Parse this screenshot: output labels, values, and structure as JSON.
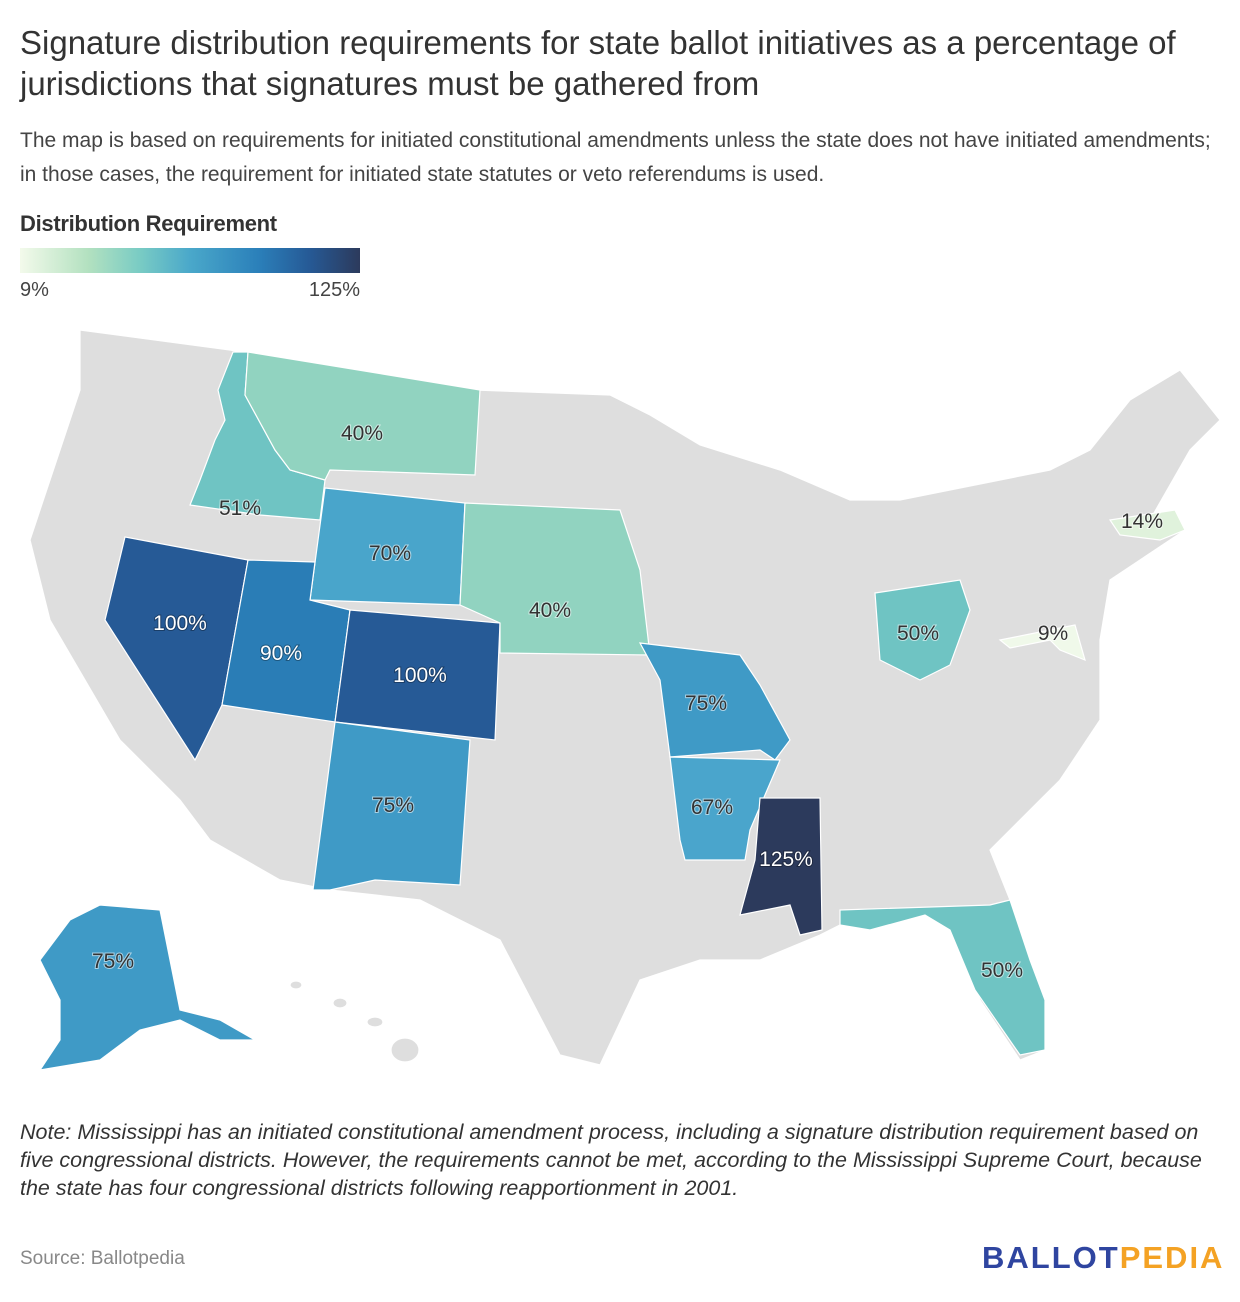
{
  "title": "Signature distribution requirements for state ballot initiatives as a percentage of jurisdictions that signatures must be gathered from",
  "subtitle": "The map is based on requirements for initiated constitutional amendments unless the state does not have initiated amendments; in those cases, the requirement for initiated state statutes or veto referendums is used.",
  "legend": {
    "title": "Distribution Requirement",
    "min_label": "9%",
    "max_label": "125%",
    "min": 9,
    "max": 125,
    "colors": [
      "#f3faeb",
      "#b3e1c0",
      "#7accc4",
      "#4aa8ca",
      "#2b80ba",
      "#265a96",
      "#2c3a5c"
    ]
  },
  "no_data_color": "#dedede",
  "states": [
    {
      "state": "Idaho",
      "value": 51,
      "label": "51%",
      "color": "#6fc4c3"
    },
    {
      "state": "Montana",
      "value": 40,
      "label": "40%",
      "color": "#91d3c0"
    },
    {
      "state": "Wyoming",
      "value": 70,
      "label": "70%",
      "color": "#49a5cb"
    },
    {
      "state": "Nevada",
      "value": 100,
      "label": "100%",
      "color": "#265a96"
    },
    {
      "state": "Utah",
      "value": 90,
      "label": "90%",
      "color": "#2a7db6"
    },
    {
      "state": "Colorado",
      "value": 100,
      "label": "100%",
      "color": "#265a96"
    },
    {
      "state": "Nebraska",
      "value": 40,
      "label": "40%",
      "color": "#91d3c0"
    },
    {
      "state": "New Mexico",
      "value": 75,
      "label": "75%",
      "color": "#3f9ac6"
    },
    {
      "state": "Missouri",
      "value": 75,
      "label": "75%",
      "color": "#3f9ac6"
    },
    {
      "state": "Arkansas",
      "value": 67,
      "label": "67%",
      "color": "#4aa5cc"
    },
    {
      "state": "Mississippi",
      "value": 125,
      "label": "125%",
      "color": "#2c3a5c"
    },
    {
      "state": "Florida",
      "value": 50,
      "label": "50%",
      "color": "#6fc4c3"
    },
    {
      "state": "Ohio",
      "value": 50,
      "label": "50%",
      "color": "#6fc4c3"
    },
    {
      "state": "Massachusetts",
      "value": 14,
      "label": "14%",
      "color": "#e0f2dc"
    },
    {
      "state": "Maryland",
      "value": 9,
      "label": "9%",
      "color": "#f0f9ea"
    },
    {
      "state": "Alaska",
      "value": 75,
      "label": "75%",
      "color": "#3f9ac6"
    }
  ],
  "note": "Note: Mississippi has an initiated constitutional amendment process, including a signature distribution requirement based on five congressional districts. However, the requirements cannot be met, according to the Mississippi Supreme Court, because the state has four congressional districts following reapportionment in 2001.",
  "source": "Source: Ballotpedia",
  "logo": {
    "part1": "BALLOT",
    "part2": "PEDIA",
    "color1": "#2f45a0",
    "color2": "#f4a224"
  }
}
